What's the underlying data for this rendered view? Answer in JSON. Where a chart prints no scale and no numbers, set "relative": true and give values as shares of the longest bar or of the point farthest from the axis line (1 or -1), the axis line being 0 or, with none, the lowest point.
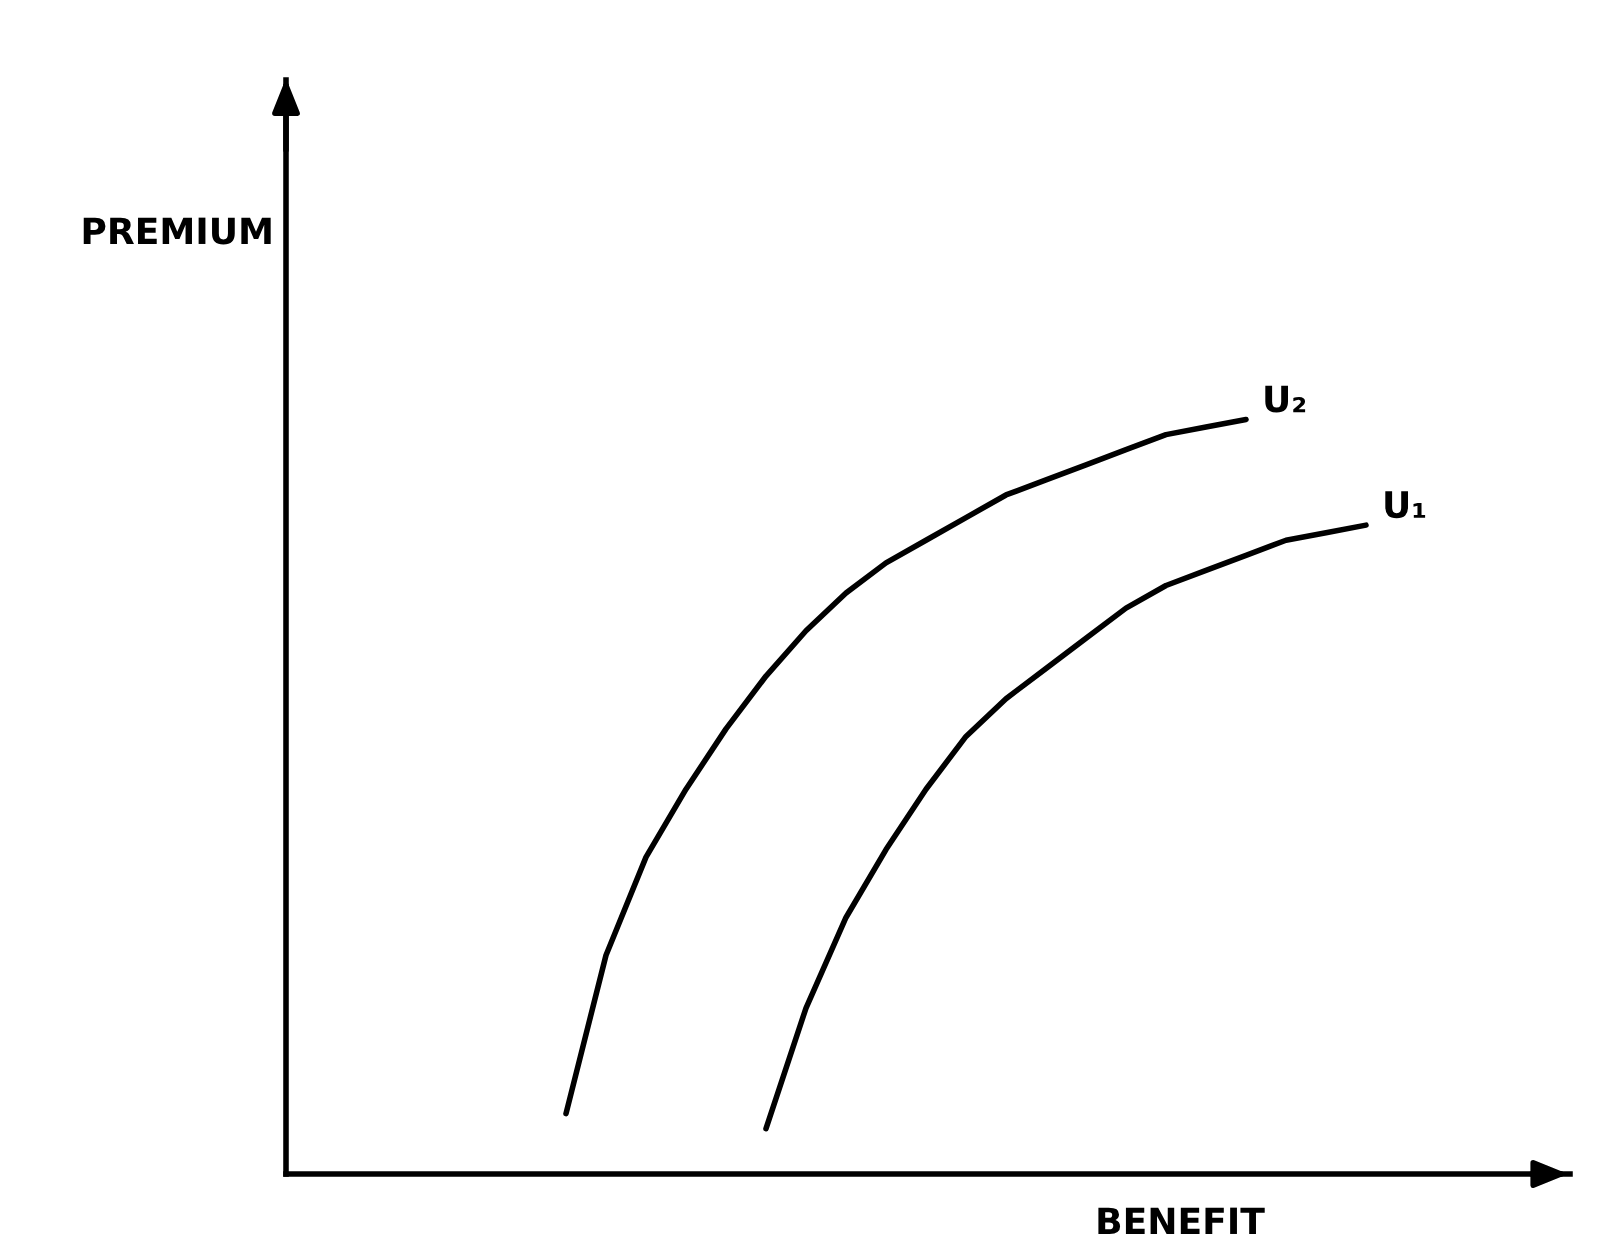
{
  "chart_data": {
    "type": "line",
    "relative": true,
    "xlabel": "BENEFIT",
    "ylabel": "PREMIUM",
    "legend": false,
    "grid": false,
    "marker": "none",
    "line_style": "solid",
    "categories": [
      null,
      null,
      null,
      null,
      null,
      null,
      null,
      null,
      null,
      null,
      null,
      null,
      null,
      null,
      null,
      null,
      null,
      null,
      null,
      null,
      null,
      null,
      null,
      null,
      null,
      null,
      null,
      null,
      null,
      null,
      null,
      null,
      null
    ],
    "series": [
      {
        "name": "U₂",
        "color": "#000000",
        "values": [
          null,
          null,
          null,
          null,
          null,
          null,
          null,
          0.08,
          0.29,
          0.42,
          0.51,
          0.59,
          0.66,
          0.72,
          0.77,
          0.81,
          0.84,
          0.87,
          0.9,
          0.92,
          0.94,
          0.96,
          0.98,
          0.99,
          1,
          null,
          null,
          null,
          null,
          null,
          null,
          null,
          null
        ]
      },
      {
        "name": "U₁",
        "color": "#000000",
        "values": [
          null,
          null,
          null,
          null,
          null,
          null,
          null,
          null,
          null,
          null,
          null,
          null,
          0.06,
          0.22,
          0.34,
          0.43,
          0.51,
          0.58,
          0.63,
          0.67,
          0.71,
          0.75,
          0.78,
          0.8,
          0.82,
          0.84,
          0.85,
          0.86,
          null,
          null,
          null,
          null,
          null
        ]
      }
    ]
  }
}
